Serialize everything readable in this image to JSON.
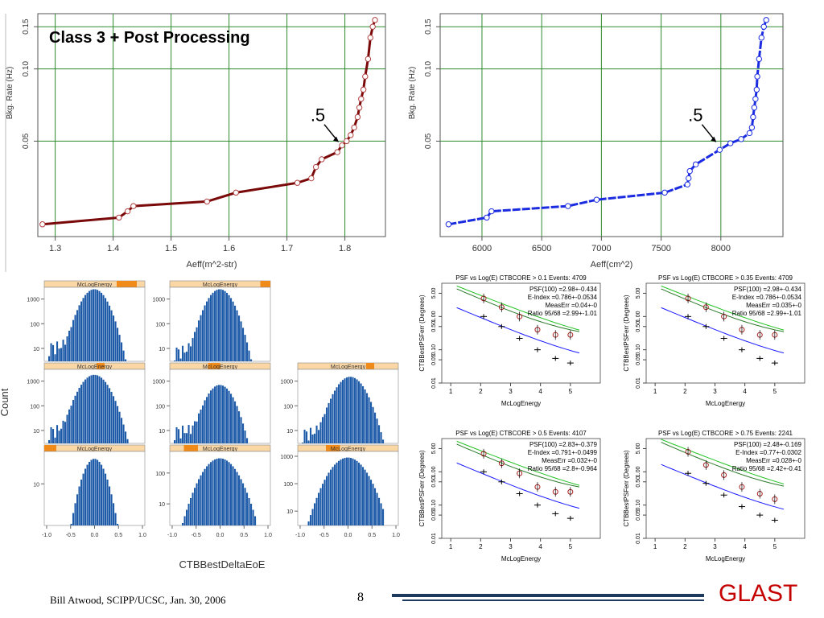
{
  "footer": {
    "author_line": "Bill Atwood,  SCIPP/UCSC, Jan. 30, 2006",
    "page_number": "8",
    "logo_text": "GLAST",
    "logo_color": "#c40000",
    "rule_color": "#1f3a5f"
  },
  "chart_data": [
    {
      "id": "rate-vs-aeff-m2",
      "type": "line",
      "title": "Class 3 + Post Processing",
      "xlabel": "Aeff(m^2-str)",
      "ylabel": "Bkg. Rate (Hz)",
      "y_scale": "log",
      "xlim": [
        1.27,
        1.87
      ],
      "ylim": [
        0.02,
        0.17
      ],
      "x_ticks": [
        "1.3",
        "1.4",
        "1.5",
        "1.6",
        "1.7",
        "1.8"
      ],
      "y_ticks": [
        "0.05",
        "0.10",
        "0.15"
      ],
      "grid": true,
      "color": "#7a0a0a",
      "annotation": ".5",
      "annotation_point": [
        1.795,
        0.048
      ],
      "x": [
        1.278,
        1.41,
        1.425,
        1.435,
        1.562,
        1.612,
        1.718,
        1.742,
        1.75,
        1.76,
        1.787,
        1.795,
        1.803,
        1.81,
        1.816,
        1.822,
        1.825,
        1.828,
        1.832,
        1.835,
        1.84,
        1.844,
        1.848,
        1.852
      ],
      "y": [
        0.0225,
        0.024,
        0.0255,
        0.0268,
        0.028,
        0.0305,
        0.0335,
        0.035,
        0.039,
        0.042,
        0.045,
        0.048,
        0.05,
        0.053,
        0.057,
        0.063,
        0.069,
        0.075,
        0.082,
        0.093,
        0.11,
        0.135,
        0.15,
        0.16
      ]
    },
    {
      "id": "rate-vs-aeff-cm2",
      "type": "line",
      "title": "",
      "xlabel": "Aeff(cm^2)",
      "ylabel": "Bkg. Rate (Hz)",
      "y_scale": "log",
      "xlim": [
        5650,
        8520
      ],
      "ylim": [
        0.02,
        0.17
      ],
      "x_ticks": [
        "6000",
        "6500",
        "7000",
        "7500",
        "8000"
      ],
      "y_ticks": [
        "0.05",
        "0.10",
        "0.15"
      ],
      "grid": true,
      "color": "#1a2be0",
      "annotation": ".5",
      "annotation_point": [
        7990,
        0.048
      ],
      "x": [
        5720,
        6040,
        6080,
        6720,
        6960,
        7530,
        7720,
        7730,
        7740,
        7790,
        7990,
        8080,
        8170,
        8240,
        8260,
        8270,
        8280,
        8290,
        8300,
        8305,
        8320,
        8340,
        8360,
        8380
      ],
      "y": [
        0.0225,
        0.024,
        0.0255,
        0.0268,
        0.0285,
        0.0305,
        0.033,
        0.035,
        0.0375,
        0.04,
        0.046,
        0.049,
        0.051,
        0.054,
        0.057,
        0.063,
        0.069,
        0.075,
        0.082,
        0.093,
        0.11,
        0.135,
        0.15,
        0.16
      ]
    },
    {
      "id": "deltaeoe-histograms",
      "type": "bar",
      "xlabel": "CTBBestDeltaEoE",
      "ylabel": "Count",
      "strip_label": "McLogEnergy",
      "x_ticks": [
        "-1.0",
        "-0.5",
        "0.0",
        "0.5",
        "1.0"
      ],
      "xlim": [
        -1.05,
        1.05
      ],
      "y_scale": "log",
      "bar_color": "#1d5aa8",
      "strip_color": "#fbd7a6",
      "strip_marker_color": "#f08a18",
      "panels": [
        {
          "col": 0,
          "row": 0,
          "y_ticks": [
            "10",
            "100",
            "1000"
          ],
          "ylim": [
            3,
            3000
          ],
          "marker": [
            0.72,
            0.92
          ],
          "peak": 2500,
          "center": 0.0,
          "width": 0.18,
          "tail": 12
        },
        {
          "col": 1,
          "row": 0,
          "y_ticks": [
            "10",
            "100",
            "1000"
          ],
          "ylim": [
            3,
            3000
          ],
          "marker": [
            0.9,
            1.0
          ],
          "peak": 2500,
          "center": 0.0,
          "width": 0.18,
          "tail": 8
        },
        {
          "col": 0,
          "row": 1,
          "y_ticks": [
            "10",
            "100",
            "1000"
          ],
          "ylim": [
            3,
            3000
          ],
          "marker": [
            0.52,
            0.6
          ],
          "peak": 1800,
          "center": 0.0,
          "width": 0.2,
          "tail": 10
        },
        {
          "col": 1,
          "row": 1,
          "y_ticks": [
            "10",
            "100",
            "1000"
          ],
          "ylim": [
            3,
            3000
          ],
          "marker": [
            0.38,
            0.5
          ],
          "peak": 700,
          "center": 0.0,
          "width": 0.18,
          "tail": 10
        },
        {
          "col": 2,
          "row": 1,
          "y_ticks": [
            "10",
            "100",
            "1000"
          ],
          "ylim": [
            3,
            3000
          ],
          "marker": [
            0.68,
            0.76
          ],
          "peak": 1500,
          "center": 0.05,
          "width": 0.2,
          "tail": 8
        },
        {
          "col": 0,
          "row": 2,
          "y_ticks": [
            "10"
          ],
          "ylim": [
            1,
            60
          ],
          "marker": [
            0.0,
            0.12
          ],
          "peak": 40,
          "center": 0.0,
          "width": 0.18,
          "tail": 0
        },
        {
          "col": 1,
          "row": 2,
          "y_ticks": [
            "10",
            "100"
          ],
          "ylim": [
            2,
            500
          ],
          "marker": [
            0.14,
            0.28
          ],
          "peak": 300,
          "center": 0.0,
          "width": 0.25,
          "tail": 0
        },
        {
          "col": 2,
          "row": 2,
          "y_ticks": [
            "10",
            "100",
            "1000"
          ],
          "ylim": [
            3,
            1500
          ],
          "marker": [
            0.28,
            0.42
          ],
          "peak": 900,
          "center": 0.0,
          "width": 0.25,
          "tail": 0
        }
      ]
    },
    {
      "id": "psf-vs-logE",
      "type": "line",
      "xlabel": "McLogEnergy",
      "x_ticks": [
        "1",
        "2",
        "3",
        "4",
        "5"
      ],
      "y_ticks": [
        "0.01",
        "0.05",
        "0.10",
        "0.50",
        "1.00",
        "5.00"
      ],
      "y_scale": "log",
      "xlim": [
        0.7,
        6.0
      ],
      "ylim": [
        0.01,
        10
      ],
      "colors": {
        "psf100": "#1a1aff",
        "psf68": "#2a7a2a",
        "psf95": "#26c226",
        "points": "#a82020"
      },
      "panels": [
        {
          "title": "PSF vs Log(E)  CTBCORE >  0.1  Events: 4709",
          "ylabel": "CTBBestPSFerr (Degrees)",
          "lines": [
            "PSF(100) =2.98+-0.434",
            "E-Index =0.786+-0.0534",
            "MeasErr =0.04+-0",
            "Ratio 95/68 =2.99+-1.01"
          ],
          "x": [
            2.1,
            2.7,
            3.3,
            3.9,
            4.5,
            5.0
          ],
          "blue_pts": [
            1.0,
            0.5,
            0.22,
            0.1,
            0.055,
            0.04
          ],
          "red_pts": [
            3.5,
            1.9,
            1.0,
            0.4,
            0.28,
            0.28
          ]
        },
        {
          "title": "PSF vs Log(E)  CTBCORE >  0.35  Events: 4709",
          "ylabel": "CTBBestPSFerr (Degrees)",
          "lines": [
            "PSF(100) =2.98+-0.434",
            "E-Index =0.786+-0.0534",
            "MeasErr =0.035+-0",
            "Ratio 95/68 =2.99+-1.01"
          ],
          "x": [
            2.1,
            2.7,
            3.3,
            3.9,
            4.5,
            5.0
          ],
          "blue_pts": [
            1.0,
            0.5,
            0.22,
            0.1,
            0.055,
            0.04
          ],
          "red_pts": [
            3.5,
            1.9,
            1.0,
            0.4,
            0.28,
            0.28
          ]
        },
        {
          "title": "PSF vs Log(E)  CTBCORE >  0.5  Events: 4107",
          "ylabel": "CTBBestPSFerr (Degrees)",
          "lines": [
            "PSF(100) =2.83+-0.379",
            "E-Index =0.791+-0.0499",
            "MeasErr =0.032+-0",
            "Ratio 95/68 =2.8+-0.964"
          ],
          "x": [
            2.1,
            2.7,
            3.3,
            3.9,
            4.5,
            5.0
          ],
          "blue_pts": [
            1.0,
            0.5,
            0.22,
            0.1,
            0.055,
            0.04
          ],
          "red_pts": [
            3.5,
            1.8,
            0.9,
            0.35,
            0.25,
            0.25
          ]
        },
        {
          "title": "PSF vs Log(E)  CTBCORE >  0.75  Events: 2241",
          "ylabel": "CTBBestPSFerr (Degrees)",
          "lines": [
            "PSF(100) =2.48+-0.169",
            "E-Index =0.77+-0.0302",
            "MeasErr =0.028+-0",
            "Ratio 95/68 =2.42+-0.41"
          ],
          "x": [
            2.1,
            2.7,
            3.3,
            3.9,
            4.5,
            5.0
          ],
          "blue_pts": [
            0.9,
            0.45,
            0.2,
            0.09,
            0.05,
            0.035
          ],
          "red_pts": [
            4.0,
            1.6,
            0.8,
            0.35,
            0.22,
            0.15
          ]
        }
      ]
    }
  ]
}
